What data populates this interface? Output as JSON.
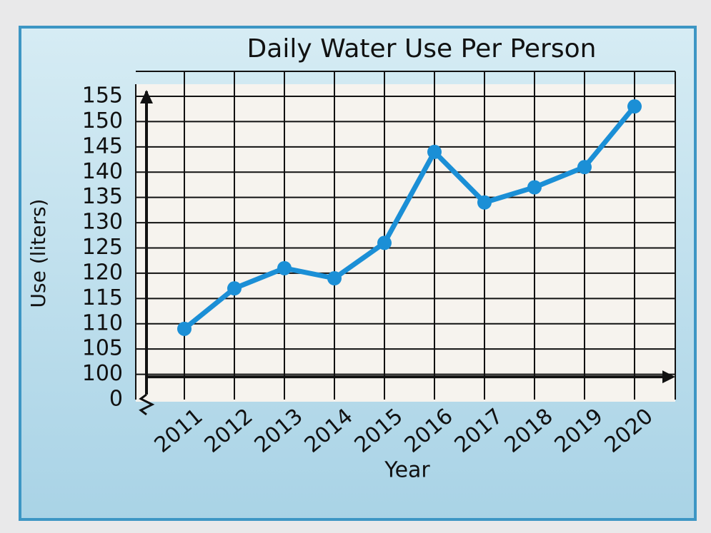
{
  "chart_data": {
    "type": "line",
    "title": "Daily Water Use Per Person",
    "x_label": "Year",
    "y_label": "Use (liters)",
    "categories": [
      "2011",
      "2012",
      "2013",
      "2014",
      "2015",
      "2016",
      "2017",
      "2018",
      "2019",
      "2020"
    ],
    "values": [
      109,
      117,
      121,
      119,
      126,
      144,
      134,
      137,
      141,
      153
    ],
    "color": "#1b8fd6",
    "ylim": [
      0,
      155
    ],
    "yticks": [
      0,
      100,
      105,
      110,
      115,
      120,
      125,
      130,
      135,
      140,
      145,
      150,
      155
    ],
    "axis_break": [
      0,
      100
    ],
    "grid": true
  }
}
